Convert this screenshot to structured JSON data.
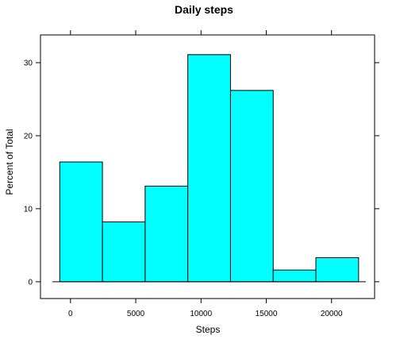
{
  "chart_data": {
    "type": "bar",
    "title": "Daily steps",
    "xlabel": "Steps",
    "ylabel": "Percent of Total",
    "xlim": [
      -2300,
      23300
    ],
    "ylim": [
      -2.3,
      33.8
    ],
    "grid": false,
    "bar_color": "#00ffff",
    "bar_edge_color": "#000000",
    "bins": [
      {
        "x0": -824,
        "x1": 2447,
        "value": 16.4
      },
      {
        "x0": 2447,
        "x1": 5718,
        "value": 8.2
      },
      {
        "x0": 5718,
        "x1": 8989,
        "value": 13.1
      },
      {
        "x0": 8989,
        "x1": 12260,
        "value": 31.1
      },
      {
        "x0": 12260,
        "x1": 15531,
        "value": 26.2
      },
      {
        "x0": 15531,
        "x1": 18802,
        "value": 1.6
      },
      {
        "x0": 18802,
        "x1": 22073,
        "value": 3.3
      }
    ],
    "x_ticks": [
      {
        "value": 0,
        "label": "0"
      },
      {
        "value": 5000,
        "label": "5000"
      },
      {
        "value": 10000,
        "label": "10000"
      },
      {
        "value": 15000,
        "label": "15000"
      },
      {
        "value": 20000,
        "label": "20000"
      }
    ],
    "y_ticks": [
      {
        "value": 0,
        "label": "0"
      },
      {
        "value": 10,
        "label": "10"
      },
      {
        "value": 20,
        "label": "20"
      },
      {
        "value": 30,
        "label": "30"
      }
    ]
  }
}
